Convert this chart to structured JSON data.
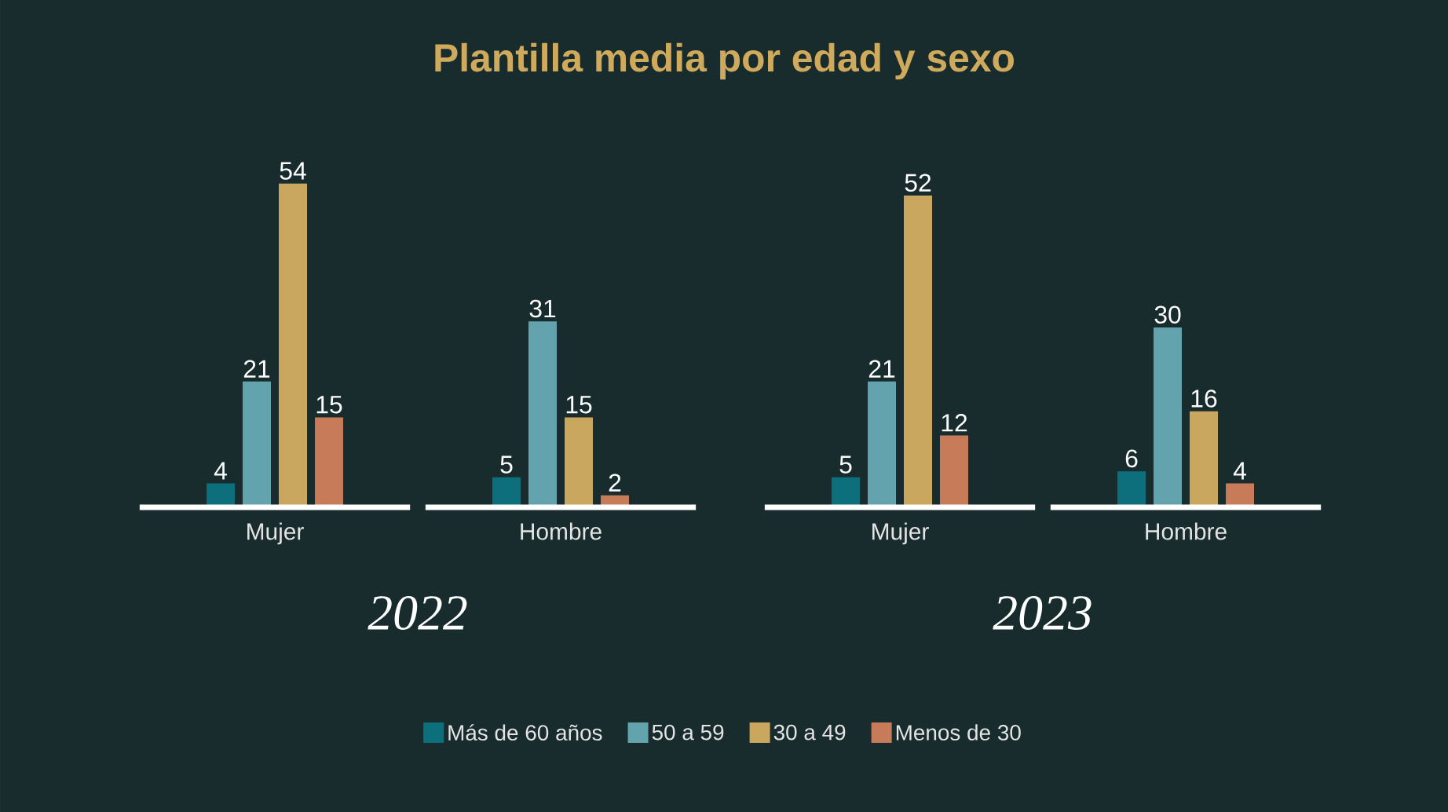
{
  "chart_data": [
    {
      "type": "bar",
      "title": "Plantilla media por edad y sexo",
      "xlabel": "2022",
      "categories": [
        "Mujer",
        "Hombre"
      ],
      "data_labels": true,
      "legend": "bottom",
      "series": [
        {
          "name": "Más de 60 años",
          "color": "#0e6f7c",
          "values": [
            4,
            5
          ]
        },
        {
          "name": "50 a 59",
          "color": "#62a3ad",
          "values": [
            21,
            31
          ]
        },
        {
          "name": "30 a 49",
          "color": "#c9a75e",
          "values": [
            54,
            15
          ]
        },
        {
          "name": "Menos de 30",
          "color": "#c77b58",
          "values": [
            15,
            2
          ]
        }
      ]
    },
    {
      "type": "bar",
      "xlabel": "2023",
      "categories": [
        "Mujer",
        "Hombre"
      ],
      "data_labels": true,
      "series": [
        {
          "color": "#0e6f7c",
          "values": [
            5,
            6
          ]
        },
        {
          "color": "#62a3ad",
          "values": [
            21,
            30
          ]
        },
        {
          "color": "#c9a75e",
          "values": [
            52,
            16
          ]
        },
        {
          "color": "#c77b58",
          "values": [
            12,
            4
          ]
        }
      ]
    }
  ]
}
